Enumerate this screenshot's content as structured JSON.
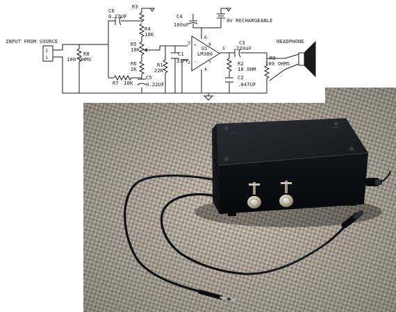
{
  "schematic": {
    "input": {
      "label": "INPUT FROM SOURCE",
      "pin_2": "2",
      "pin_1": "1"
    },
    "headphone": {
      "label": "HEADPHONE"
    },
    "battery": {
      "label": "9V RECHARGEABLE"
    },
    "amp": {
      "name": "U1",
      "part": "LM386",
      "pin_3": "3",
      "pin_2": "2",
      "pin_6": "6",
      "pin_4": "4",
      "pin_5": "5",
      "pin_8": "8",
      "pin_1": "1",
      "plus": "+",
      "minus": "-"
    },
    "components": {
      "r3": "R3",
      "c6_name": "C6",
      "c6_val": "0.22UF",
      "r4_name": "R4",
      "r4_val": "10K",
      "r5_name": "R5",
      "r5_val": "10K",
      "r8_name": "R8",
      "r8_val": "100 OHMS",
      "r6_name": "R6",
      "r6_val": "2K",
      "r7_name": "R7",
      "r7_val": "10K",
      "c5_name": "C5",
      "c5_val": "0.22UF",
      "c4_name": "C4",
      "c4_val": "100uF",
      "c1_name": "C1",
      "c1_val": "33PF",
      "r1_name": "R1",
      "r1_val": "22K",
      "c3_name": "C3",
      "c3_val": "220uF",
      "r2_name": "R2",
      "r2_val": "10 OHM",
      "c2_name": "C2",
      "c2_val": ".047UF",
      "r9_name": "R9",
      "r9_val": "100 OHMS"
    }
  },
  "photo": {
    "subject": "black-project-box-with-two-knobs-and-audio-cables"
  }
}
